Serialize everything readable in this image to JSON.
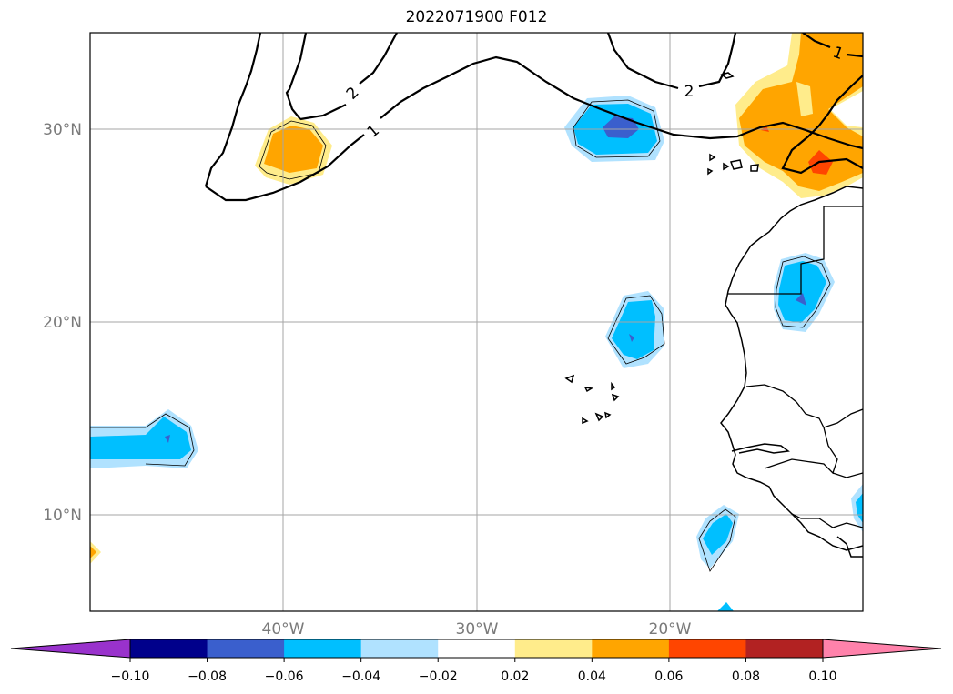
{
  "title": "2022071900 F012",
  "map": {
    "lon_range": [
      -50,
      -10
    ],
    "lat_range": [
      5,
      35
    ],
    "longitude_labels": [
      "40°W",
      "30°W",
      "20°W"
    ],
    "latitude_labels": [
      "30°N",
      "20°N",
      "10°N"
    ],
    "grid": true,
    "contour_labels": [
      "2",
      "1",
      "2",
      "1"
    ]
  },
  "colorbar": {
    "orientation": "horizontal",
    "extend": "both",
    "ticks": [
      "−0.10",
      "−0.08",
      "−0.06",
      "−0.04",
      "−0.02",
      "0.02",
      "0.04",
      "0.06",
      "0.08",
      "0.10"
    ],
    "colors": [
      "#9932CC",
      "#00008B",
      "#3A5FCD",
      "#00BFFF",
      "#B0E2FF",
      "#FFFFFF",
      "#FFEC8B",
      "#FFA500",
      "#FF4500",
      "#B22222",
      "#FF82AB"
    ]
  }
}
